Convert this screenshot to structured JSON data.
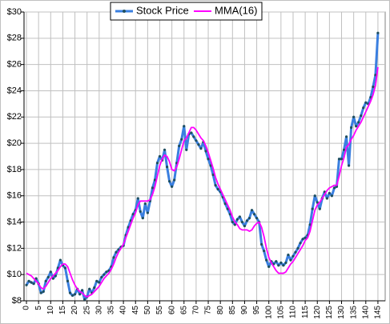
{
  "chart_data": {
    "type": "line",
    "x": [
      0,
      1,
      2,
      3,
      4,
      5,
      6,
      7,
      8,
      9,
      10,
      11,
      12,
      13,
      14,
      15,
      16,
      17,
      18,
      19,
      20,
      21,
      22,
      23,
      24,
      25,
      26,
      27,
      28,
      29,
      30,
      31,
      32,
      33,
      34,
      35,
      36,
      37,
      38,
      39,
      40,
      41,
      42,
      43,
      44,
      45,
      46,
      47,
      48,
      49,
      50,
      51,
      52,
      53,
      54,
      55,
      56,
      57,
      58,
      59,
      60,
      61,
      62,
      63,
      64,
      65,
      66,
      67,
      68,
      69,
      70,
      71,
      72,
      73,
      74,
      75,
      76,
      77,
      78,
      79,
      80,
      81,
      82,
      83,
      84,
      85,
      86,
      87,
      88,
      89,
      90,
      91,
      92,
      93,
      94,
      95,
      96,
      97,
      98,
      99,
      100,
      101,
      102,
      103,
      104,
      105,
      106,
      107,
      108,
      109,
      110,
      111,
      112,
      113,
      114,
      115,
      116,
      117,
      118,
      119,
      120,
      121,
      122,
      123,
      124,
      125,
      126,
      127,
      128,
      129,
      130,
      131,
      132,
      133,
      134,
      135,
      136,
      137,
      138,
      139,
      140,
      141,
      142,
      143,
      144,
      145
    ],
    "series": [
      {
        "name": "Stock Price",
        "color": "#3a7fe0",
        "marker_color": "#1f4f5f",
        "values": [
          9.2,
          9.5,
          9.4,
          9.3,
          9.7,
          9.3,
          8.6,
          8.7,
          9.5,
          9.8,
          10.2,
          9.7,
          9.9,
          10.5,
          11.1,
          10.7,
          10.5,
          9.5,
          8.6,
          8.4,
          8.5,
          8.9,
          8.5,
          8.8,
          8.1,
          8.3,
          8.9,
          8.6,
          9.0,
          9.5,
          9.4,
          9.8,
          10.0,
          10.2,
          10.3,
          10.6,
          11.3,
          11.7,
          11.9,
          12.1,
          12.2,
          13.0,
          13.6,
          14.1,
          14.6,
          14.9,
          15.8,
          14.8,
          14.3,
          15.4,
          14.7,
          15.6,
          16.6,
          17.2,
          18.5,
          19.0,
          18.7,
          19.5,
          18.2,
          17.1,
          16.7,
          17.2,
          18.5,
          19.8,
          20.3,
          21.3,
          19.5,
          20.7,
          20.8,
          20.5,
          20.2,
          19.9,
          19.6,
          20.1,
          19.4,
          18.8,
          18.3,
          17.6,
          16.8,
          16.5,
          16.3,
          15.9,
          15.4,
          15.0,
          14.6,
          14.0,
          13.8,
          14.2,
          14.4,
          14.0,
          13.7,
          14.1,
          14.3,
          14.9,
          14.6,
          14.3,
          14.0,
          12.3,
          11.8,
          11.1,
          10.6,
          11.0,
          10.8,
          11.0,
          10.7,
          10.9,
          10.7,
          10.9,
          11.5,
          11.1,
          11.4,
          11.7,
          12.0,
          12.4,
          12.7,
          12.8,
          13.0,
          13.8,
          15.0,
          16.0,
          15.5,
          15.0,
          15.8,
          16.3,
          15.8,
          16.2,
          16.0,
          16.6,
          16.7,
          18.8,
          18.8,
          19.5,
          20.5,
          18.3,
          21.2,
          22.0,
          21.3,
          21.6,
          22.1,
          22.7,
          23.1,
          23.0,
          23.5,
          24.3,
          25.2,
          28.4
        ]
      },
      {
        "name": "MMA(16)",
        "color": "#ff00ff",
        "values": [
          10.1,
          10.0,
          9.9,
          9.7,
          9.5,
          9.3,
          9.0,
          8.9,
          9.1,
          9.4,
          9.7,
          9.9,
          10.1,
          10.3,
          10.6,
          10.8,
          10.8,
          10.6,
          10.1,
          9.6,
          9.2,
          8.9,
          8.7,
          8.6,
          8.4,
          8.3,
          8.4,
          8.5,
          8.7,
          8.9,
          9.1,
          9.4,
          9.7,
          9.9,
          10.1,
          10.4,
          10.8,
          11.3,
          11.7,
          12.0,
          12.3,
          12.8,
          13.3,
          13.8,
          14.3,
          14.7,
          15.3,
          15.6,
          15.6,
          15.6,
          15.6,
          15.7,
          16.1,
          16.7,
          17.5,
          18.3,
          18.8,
          19.1,
          19.0,
          18.6,
          18.0,
          17.9,
          18.2,
          18.8,
          19.5,
          20.2,
          20.4,
          20.8,
          21.2,
          21.2,
          21.0,
          20.7,
          20.4,
          20.2,
          19.8,
          19.3,
          18.7,
          18.1,
          17.4,
          16.9,
          16.5,
          16.1,
          15.7,
          15.3,
          14.9,
          14.4,
          14.0,
          13.8,
          13.5,
          13.4,
          13.4,
          13.4,
          13.3,
          13.4,
          13.7,
          13.9,
          14.0,
          13.6,
          12.9,
          12.0,
          11.3,
          10.9,
          10.6,
          10.3,
          10.1,
          10.1,
          10.1,
          10.2,
          10.5,
          10.8,
          11.0,
          11.3,
          11.6,
          11.9,
          12.2,
          12.6,
          12.8,
          13.3,
          14.1,
          14.9,
          15.3,
          15.5,
          15.8,
          16.1,
          16.4,
          16.6,
          16.7,
          16.8,
          16.8,
          17.5,
          18.3,
          18.9,
          19.7,
          19.9,
          20.3,
          20.6,
          21.0,
          21.3,
          21.6,
          22.0,
          22.4,
          22.8,
          23.2,
          23.7,
          24.4,
          25.8
        ]
      }
    ],
    "xlim": [
      -1,
      148
    ],
    "xticks": [
      0,
      5,
      10,
      15,
      20,
      25,
      30,
      35,
      40,
      45,
      50,
      55,
      60,
      65,
      70,
      75,
      80,
      85,
      90,
      95,
      100,
      105,
      110,
      115,
      120,
      125,
      130,
      135,
      140,
      145
    ],
    "ylim": [
      8,
      30
    ],
    "yticks": [
      {
        "value": 8,
        "label": "$8"
      },
      {
        "value": 10,
        "label": "$10"
      },
      {
        "value": 12,
        "label": "$12"
      },
      {
        "value": 14,
        "label": "$14"
      },
      {
        "value": 16,
        "label": "$16"
      },
      {
        "value": 18,
        "label": "$18"
      },
      {
        "value": 20,
        "label": "$20"
      },
      {
        "value": 22,
        "label": "$22"
      },
      {
        "value": 24,
        "label": "$24"
      },
      {
        "value": 26,
        "label": "$26"
      },
      {
        "value": 28,
        "label": "$28"
      },
      {
        "value": 30,
        "label": "$30"
      }
    ],
    "grid": true,
    "legend": "top"
  }
}
